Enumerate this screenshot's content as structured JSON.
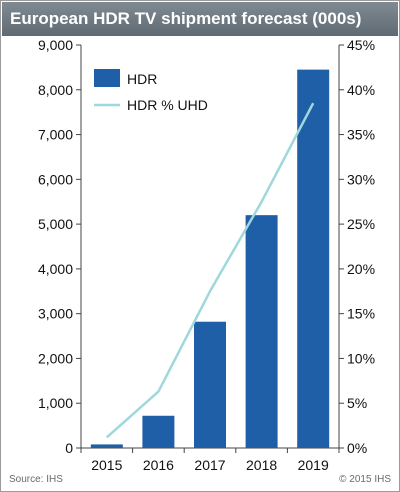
{
  "title": "European HDR TV shipment forecast (000s)",
  "footer": {
    "source": "Source: IHS",
    "copyright": "© 2015 IHS"
  },
  "colors": {
    "bar": "#1e5fa8",
    "line": "#9fd8dc",
    "title_bg": "#6b767f",
    "frame": "#9a9a9a"
  },
  "chart_data": {
    "type": "bar",
    "categories": [
      "2015",
      "2016",
      "2017",
      "2018",
      "2019"
    ],
    "series": [
      {
        "name": "HDR",
        "type": "bar",
        "axis": "left",
        "values": [
          80,
          720,
          2820,
          5200,
          8450
        ]
      },
      {
        "name": "HDR % UHD",
        "type": "line",
        "axis": "right",
        "values": [
          0.012,
          0.063,
          0.175,
          0.275,
          0.385
        ]
      }
    ],
    "y_left": {
      "min": 0,
      "max": 9000,
      "ticks": [
        "0",
        "1,000",
        "2,000",
        "3,000",
        "4,000",
        "5,000",
        "6,000",
        "7,000",
        "8,000",
        "9,000"
      ]
    },
    "y_right": {
      "min": 0,
      "max": 0.45,
      "ticks": [
        "0%",
        "5%",
        "10%",
        "15%",
        "20%",
        "25%",
        "30%",
        "35%",
        "40%",
        "45%"
      ]
    },
    "legend_position": "top-left",
    "grid": false
  }
}
